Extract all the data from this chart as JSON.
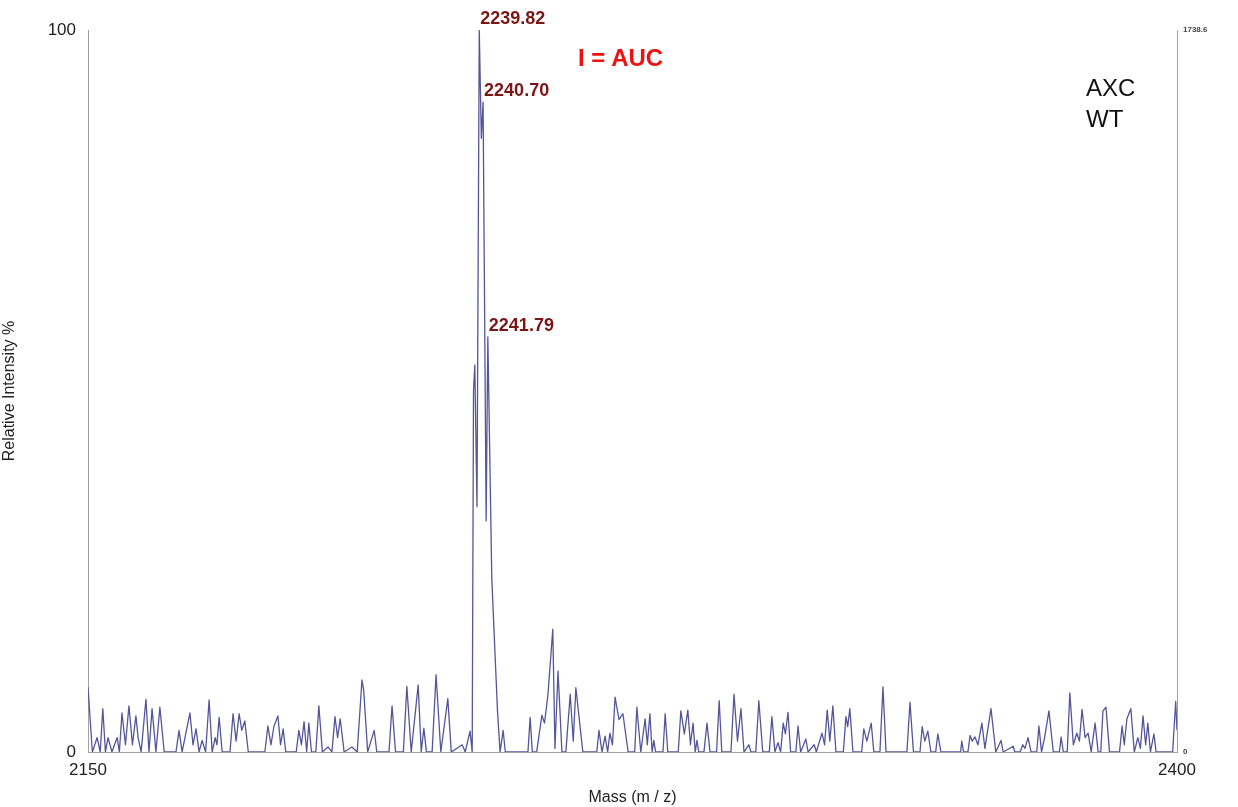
{
  "chart_data": {
    "type": "line",
    "xlabel": "Mass (m / z)",
    "ylabel": "Relative Intensity %",
    "xlim": [
      2150,
      2400
    ],
    "xticks": [
      2150,
      2400
    ],
    "ylim": [
      0,
      100
    ],
    "yticks": [
      0,
      100
    ],
    "y2lim": [
      0,
      1738.6
    ],
    "y2ticks": [
      0,
      1738.6
    ],
    "grid": false,
    "legend": false,
    "marker": "none",
    "line_style": "solid",
    "annotations": [
      {
        "text": "2239.82",
        "x": 2239.82,
        "y": 100
      },
      {
        "text": "2240.70",
        "x": 2240.7,
        "y": 90
      },
      {
        "text": "2241.79",
        "x": 2241.79,
        "y": 57.5
      },
      "I = AUC",
      "AXC",
      "WT"
    ],
    "series": [
      {
        "color": "#55559a",
        "x": [
          2150,
          2151.0,
          2152.1,
          2152.8,
          2153.4,
          2154.0,
          2154.6,
          2155.5,
          2156.7,
          2157.2,
          2157.8,
          2158.6,
          2159.4,
          2160.2,
          2161.0,
          2161.5,
          2162.2,
          2163.3,
          2164.0,
          2164.7,
          2165.6,
          2166.5,
          2167.5,
          2170.2,
          2170.9,
          2171.6,
          2173.4,
          2174.1,
          2174.8,
          2175.5,
          2176.2,
          2177.0,
          2177.8,
          2178.5,
          2179.2,
          2179.6,
          2180.1,
          2180.8,
          2182.6,
          2183.3,
          2184.0,
          2184.7,
          2185.3,
          2186.0,
          2186.8,
          2190.6,
          2191.3,
          2192.0,
          2192.7,
          2193.6,
          2194.2,
          2194.8,
          2195.4,
          2197.8,
          2198.4,
          2199.0,
          2199.6,
          2200.2,
          2200.7,
          2201.3,
          2202.3,
          2203.0,
          2203.8,
          2205.1,
          2206.0,
          2206.7,
          2207.3,
          2207.9,
          2208.8,
          2210.6,
          2211.8,
          2212.9,
          2213.3,
          2214.2,
          2215.7,
          2216.3,
          2219.1,
          2219.8,
          2220.6,
          2222.4,
          2223.2,
          2224.2,
          2225.8,
          2226.5,
          2227.1,
          2227.7,
          2229.0,
          2229.9,
          2231.0,
          2232.6,
          2233.4,
          2235.9,
          2236.6,
          2237.7,
          2238.2,
          2238.5,
          2238.8,
          2239.3,
          2239.82,
          2240.3,
          2240.7,
          2241.4,
          2241.79,
          2242.7,
          2243.7,
          2244.0,
          2244.6,
          2245.3,
          2245.8,
          2251.0,
          2251.5,
          2252.0,
          2253.0,
          2254.2,
          2254.8,
          2255.6,
          2256.7,
          2257.2,
          2257.9,
          2258.8,
          2259.7,
          2260.7,
          2261.4,
          2262.0,
          2263.6,
          2266.8,
          2267.3,
          2268.0,
          2268.7,
          2269.3,
          2269.8,
          2270.4,
          2271.0,
          2271.9,
          2272.8,
          2274.0,
          2275.5,
          2276.0,
          2276.9,
          2277.9,
          2278.4,
          2279.0,
          2279.5,
          2279.9,
          2280.3,
          2282.0,
          2282.5,
          2283.1,
          2285.5,
          2286.1,
          2286.9,
          2287.7,
          2288.3,
          2288.9,
          2289.4,
          2289.8,
          2290.2,
          2291.4,
          2292.1,
          2292.8,
          2294.3,
          2294.9,
          2295.5,
          2297.6,
          2298.3,
          2299.1,
          2299.9,
          2300.6,
          2301.7,
          2302.2,
          2303.3,
          2304.0,
          2304.9,
          2306.4,
          2307.0,
          2307.7,
          2308.4,
          2309.0,
          2309.6,
          2310.1,
          2310.7,
          2311.3,
          2312.5,
          2313.0,
          2313.6,
          2314.8,
          2315.3,
          2316.7,
          2317.2,
          2318.5,
          2319.1,
          2319.7,
          2320.3,
          2321.0,
          2321.7,
          2323.4,
          2324.0,
          2324.4,
          2324.9,
          2325.6,
          2327.6,
          2328.1,
          2328.8,
          2329.8,
          2330.4,
          2331.8,
          2332.5,
          2333.2,
          2338.0,
          2338.7,
          2339.5,
          2341.0,
          2341.5,
          2342.1,
          2342.8,
          2343.5,
          2344.6,
          2345.1,
          2345.8,
          2350.3,
          2350.6,
          2351.0,
          2352.0,
          2352.5,
          2353.0,
          2353.6,
          2354.3,
          2355.2,
          2355.9,
          2357.3,
          2358.4,
          2359.6,
          2360.1,
          2362.4,
          2362.8,
          2364.0,
          2364.6,
          2365.1,
          2365.8,
          2366.5,
          2367.8,
          2368.3,
          2368.9,
          2369.6,
          2370.6,
          2371.6,
          2373.0,
          2373.4,
          2373.9,
          2374.8,
          2375.4,
          2376.2,
          2377.0,
          2377.6,
          2378.2,
          2378.9,
          2379.6,
          2380.3,
          2381.2,
          2381.9,
          2382.5,
          2383.0,
          2383.7,
          2384.5,
          2386.8,
          2387.4,
          2387.9,
          2388.5,
          2389.4,
          2390.2,
          2391.0,
          2391.6,
          2392.2,
          2392.8,
          2393.3,
          2393.9,
          2394.7,
          2395.2,
          2399.0,
          2399.7,
          2400
        ],
        "values": [
          9,
          0,
          2,
          0,
          6,
          0,
          2,
          0,
          2,
          0,
          5.4,
          1,
          6.4,
          1,
          5,
          2,
          0,
          7.3,
          0,
          6,
          0,
          6.2,
          0,
          0,
          3,
          0,
          5.4,
          1,
          3.2,
          0,
          1.6,
          0,
          7.2,
          0,
          2,
          1,
          4.8,
          0,
          0,
          5.3,
          1.5,
          5.3,
          3,
          4.3,
          0,
          0,
          3.6,
          1,
          3.6,
          5,
          1,
          3.2,
          0,
          0,
          3,
          1,
          4.2,
          0,
          4,
          0,
          0,
          6.4,
          0,
          0.7,
          0,
          4.9,
          2,
          4.6,
          0,
          0.7,
          0,
          10,
          8.5,
          0,
          3,
          0,
          0,
          6.4,
          0,
          0,
          9.1,
          0,
          9.3,
          0,
          3.3,
          0,
          0,
          10.7,
          0,
          7.4,
          0,
          1,
          0,
          2.9,
          0,
          50,
          53.6,
          34,
          100,
          85,
          90,
          32,
          57.5,
          24,
          10,
          5.8,
          0,
          3,
          0,
          0,
          4.8,
          0,
          0,
          5.1,
          4,
          8,
          17,
          0.5,
          11.2,
          0,
          0,
          8,
          1.5,
          8.9,
          0,
          0,
          3,
          0,
          2.2,
          0,
          2.6,
          1,
          7.6,
          4.5,
          5.3,
          0,
          0,
          6.2,
          0,
          4.6,
          1,
          5.3,
          0,
          1.6,
          0,
          0,
          5.3,
          0,
          0,
          5.7,
          2.5,
          5.8,
          1,
          4,
          0,
          1.6,
          0,
          0,
          4,
          0,
          0,
          7.1,
          0,
          0,
          8,
          1.5,
          6,
          0,
          1,
          0,
          0,
          7.1,
          0,
          0,
          4.9,
          0,
          1.3,
          0,
          4,
          2.5,
          5.5,
          0,
          0,
          3.6,
          0,
          1.8,
          0,
          1,
          0,
          2.6,
          1,
          5.8,
          1.5,
          6.4,
          0,
          0,
          4.9,
          3.5,
          6,
          0,
          0,
          3.2,
          1.5,
          4,
          0,
          0,
          9,
          0,
          0,
          6.9,
          0,
          0,
          3.5,
          1.5,
          2.9,
          0,
          0,
          2.5,
          0,
          0,
          1.5,
          0,
          0,
          2.3,
          1.5,
          2.1,
          1,
          4,
          0.5,
          6,
          0,
          1.6,
          0,
          0.8,
          0,
          0,
          1,
          0.5,
          2,
          0,
          0,
          3.6,
          0,
          2,
          5.7,
          0,
          0,
          2.1,
          0,
          0,
          8.2,
          1,
          2.6,
          1.5,
          5.9,
          2,
          2.6,
          0,
          4,
          0,
          0,
          5.7,
          6.2,
          0,
          0,
          3.6,
          1,
          4.6,
          6,
          0,
          2,
          0.5,
          5,
          1,
          4,
          0,
          2.5,
          0,
          0,
          7,
          3
        ]
      }
    ]
  }
}
